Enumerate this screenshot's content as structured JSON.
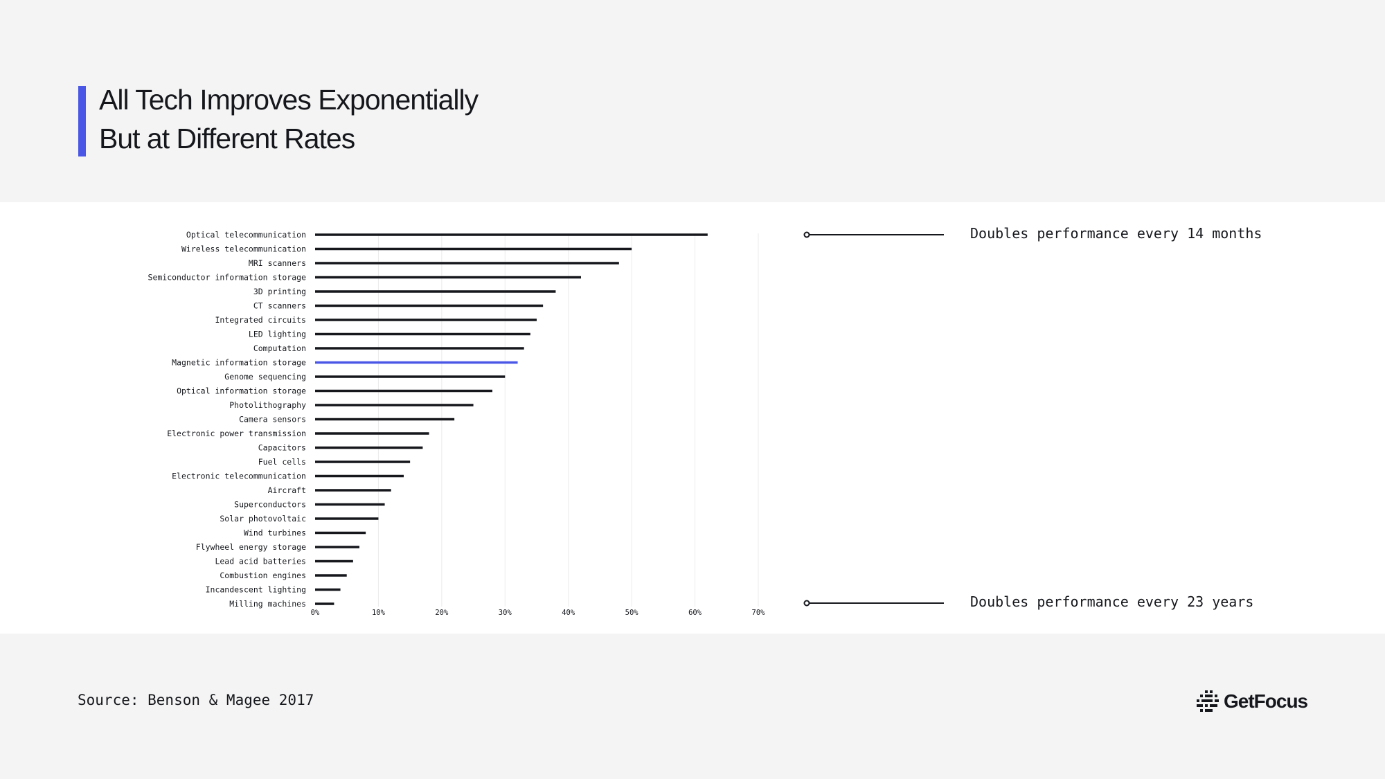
{
  "header": {
    "title_line1": "All Tech Improves Exponentially",
    "title_line2": "But at Different Rates",
    "accent_color": "#4a57e6"
  },
  "chart_data": {
    "type": "bar",
    "orientation": "horizontal",
    "categories": [
      "Optical telecommunication",
      "Wireless telecommunication",
      "MRI scanners",
      "Semiconductor information storage",
      "3D printing",
      "CT scanners",
      "Integrated circuits",
      "LED lighting",
      "Computation",
      "Magnetic information storage",
      "Genome sequencing",
      "Optical information storage",
      "Photolithography",
      "Camera sensors",
      "Electronic power transmission",
      "Capacitors",
      "Fuel cells",
      "Electronic telecommunication",
      "Aircraft",
      "Superconductors",
      "Solar photovoltaic",
      "Wind turbines",
      "Flywheel energy storage",
      "Lead acid batteries",
      "Combustion engines",
      "Incandescent lighting",
      "Milling machines"
    ],
    "values": [
      62,
      50,
      48,
      42,
      38,
      36,
      35,
      34,
      33,
      32,
      30,
      28,
      25,
      22,
      18,
      17,
      15,
      14,
      12,
      11,
      10,
      8,
      7,
      6,
      5,
      4,
      3
    ],
    "highlight": "Magnetic information storage",
    "bar_color": "#15171c",
    "highlight_color": "#4a57e6",
    "xlim": [
      0,
      70
    ],
    "xticks": [
      0,
      10,
      20,
      30,
      40,
      50,
      60,
      70
    ],
    "xtick_labels": [
      "0%",
      "10%",
      "20%",
      "30%",
      "40%",
      "50%",
      "60%",
      "70%"
    ],
    "grid": true,
    "annotations": [
      "Doubles performance every 14 months",
      "Doubles performance every 23 years"
    ]
  },
  "footer": {
    "source": "Source: Benson & Magee 2017",
    "logo_text": "GetFocus"
  }
}
